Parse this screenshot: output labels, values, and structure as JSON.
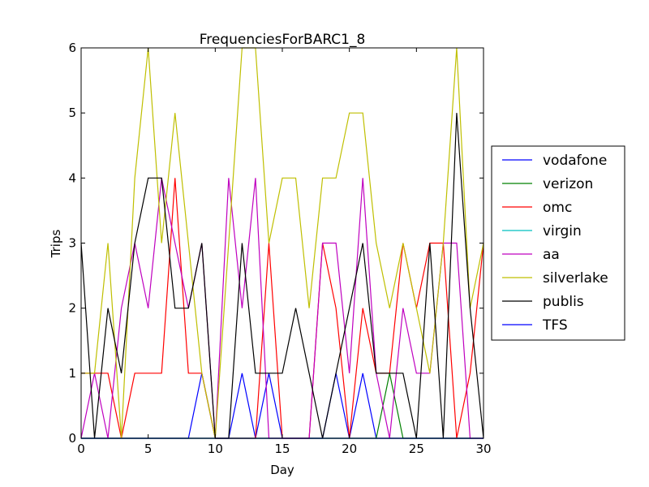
{
  "chart_data": {
    "type": "line",
    "title": "FrequenciesForBARC1_8",
    "xlabel": "Day",
    "ylabel": "Trips",
    "xlim": [
      0,
      30
    ],
    "ylim": [
      0,
      6
    ],
    "xticks": [
      "0",
      "5",
      "10",
      "15",
      "20",
      "25",
      "30"
    ],
    "yticks": [
      "0",
      "1",
      "2",
      "3",
      "4",
      "5",
      "6"
    ],
    "grid": false,
    "legend_position": "outside-right",
    "x": [
      0,
      1,
      2,
      3,
      4,
      5,
      6,
      7,
      8,
      9,
      10,
      11,
      12,
      13,
      14,
      15,
      16,
      17,
      18,
      19,
      20,
      21,
      22,
      23,
      24,
      25,
      26,
      27,
      28,
      29,
      30
    ],
    "series": [
      {
        "name": "vodafone",
        "color": "#0000ff",
        "values": [
          0,
          0,
          0,
          0,
          0,
          0,
          0,
          0,
          0,
          1,
          0,
          0,
          1,
          0,
          1,
          0,
          0,
          0,
          0,
          1,
          0,
          1,
          0,
          0,
          0,
          0,
          0,
          0,
          0,
          0,
          0
        ]
      },
      {
        "name": "verizon",
        "color": "#008000",
        "values": [
          0,
          0,
          0,
          0,
          0,
          0,
          0,
          0,
          0,
          0,
          0,
          0,
          0,
          0,
          0,
          0,
          0,
          0,
          0,
          0,
          0,
          0,
          0,
          1,
          0,
          0,
          0,
          0,
          0,
          0,
          0
        ]
      },
      {
        "name": "omc",
        "color": "#ff0000",
        "values": [
          1,
          1,
          1,
          0,
          1,
          1,
          1,
          4,
          1,
          1,
          0,
          0,
          0,
          0,
          3,
          0,
          0,
          0,
          3,
          2,
          0,
          2,
          1,
          1,
          3,
          2,
          3,
          3,
          0,
          1,
          3
        ]
      },
      {
        "name": "virgin",
        "color": "#00bfbf",
        "values": [
          0,
          0,
          0,
          0,
          0,
          0,
          0,
          0,
          0,
          0,
          0,
          0,
          0,
          0,
          0,
          0,
          0,
          0,
          0,
          0,
          0,
          0,
          0,
          0,
          0,
          0,
          0,
          0,
          0,
          0,
          0
        ]
      },
      {
        "name": "aa",
        "color": "#bf00bf",
        "values": [
          0,
          1,
          0,
          2,
          3,
          2,
          4,
          3,
          2,
          3,
          0,
          4,
          2,
          4,
          0,
          0,
          0,
          0,
          3,
          3,
          1,
          4,
          1,
          0,
          2,
          1,
          1,
          3,
          3,
          0,
          0
        ]
      },
      {
        "name": "silverlake",
        "color": "#bfbf00",
        "values": [
          1,
          1,
          3,
          0,
          4,
          6,
          3,
          5,
          3,
          1,
          0,
          3,
          6,
          6,
          3,
          4,
          4,
          2,
          4,
          4,
          5,
          5,
          3,
          2,
          3,
          2,
          1,
          3,
          6,
          2,
          3
        ]
      },
      {
        "name": "publis",
        "color": "#000000",
        "values": [
          3,
          0,
          2,
          1,
          3,
          4,
          4,
          2,
          2,
          3,
          0,
          0,
          3,
          1,
          1,
          1,
          2,
          1,
          0,
          1,
          2,
          3,
          1,
          1,
          1,
          0,
          3,
          0,
          5,
          2,
          0
        ]
      },
      {
        "name": "TFS",
        "color": "#0000ff",
        "values": [
          0,
          0,
          0,
          0,
          0,
          0,
          0,
          0,
          0,
          0,
          0,
          0,
          0,
          0,
          0,
          0,
          0,
          0,
          0,
          0,
          0,
          0,
          0,
          0,
          0,
          0,
          0,
          0,
          0,
          0,
          0
        ]
      }
    ]
  }
}
